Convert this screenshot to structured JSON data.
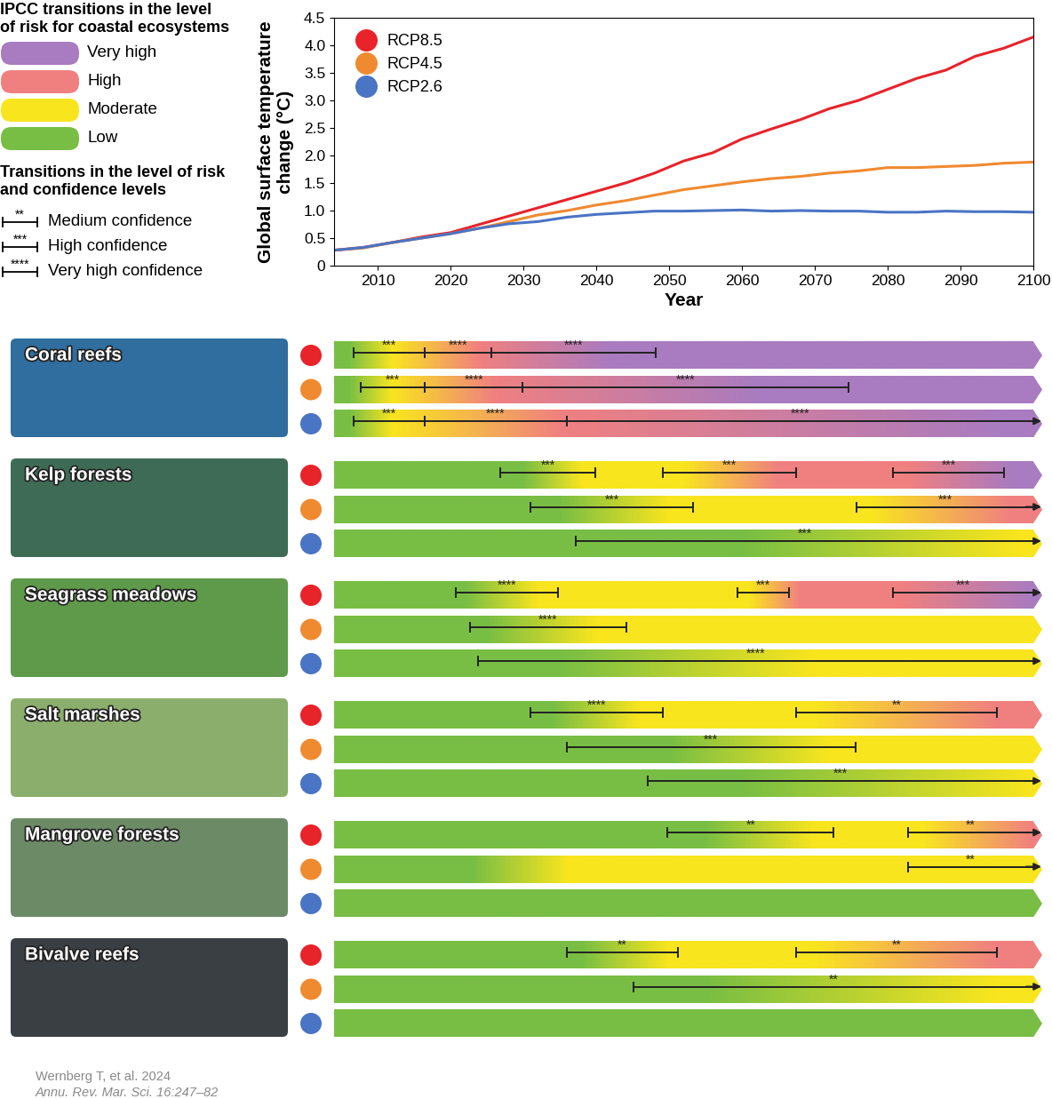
{
  "chart_data": {
    "type": "line",
    "x": [
      2004,
      2008,
      2012,
      2016,
      2020,
      2024,
      2028,
      2032,
      2036,
      2040,
      2044,
      2048,
      2052,
      2056,
      2060,
      2064,
      2068,
      2072,
      2076,
      2080,
      2084,
      2088,
      2092,
      2096,
      2100
    ],
    "series": [
      {
        "name": "RCP8.5",
        "color": "#e8232a",
        "values": [
          0.28,
          0.33,
          0.42,
          0.52,
          0.6,
          0.75,
          0.9,
          1.05,
          1.2,
          1.35,
          1.5,
          1.68,
          1.9,
          2.05,
          2.3,
          2.48,
          2.65,
          2.85,
          3.0,
          3.2,
          3.4,
          3.55,
          3.8,
          3.95,
          4.15
        ]
      },
      {
        "name": "RCP4.5",
        "color": "#f08a30",
        "values": [
          0.28,
          0.32,
          0.42,
          0.5,
          0.58,
          0.68,
          0.8,
          0.92,
          1.0,
          1.1,
          1.18,
          1.28,
          1.38,
          1.45,
          1.52,
          1.58,
          1.62,
          1.68,
          1.72,
          1.78,
          1.78,
          1.8,
          1.82,
          1.86,
          1.88
        ]
      },
      {
        "name": "RCP2.6",
        "color": "#4a74c4",
        "values": [
          0.28,
          0.33,
          0.42,
          0.5,
          0.58,
          0.68,
          0.76,
          0.8,
          0.88,
          0.93,
          0.96,
          0.99,
          0.99,
          1.0,
          1.01,
          0.99,
          1.0,
          0.99,
          0.99,
          0.97,
          0.97,
          0.99,
          0.98,
          0.98,
          0.97
        ]
      }
    ],
    "xlabel": "Year",
    "ylabel": "Global surface temperature\nchange (°C)",
    "xlim": [
      2004,
      2100
    ],
    "ylim": [
      0,
      4.5
    ],
    "xticks": [
      2010,
      2020,
      2030,
      2040,
      2050,
      2060,
      2070,
      2080,
      2090,
      2100
    ],
    "yticks": [
      0,
      0.5,
      {
        "value": 1,
        "label": "1.0"
      },
      1.5,
      {
        "value": 2,
        "label": "2.0"
      },
      2.5,
      {
        "value": 3,
        "label": "3.0"
      },
      3.5,
      {
        "value": 4,
        "label": "4.0"
      },
      4.5
    ],
    "legend": "upper left",
    "grid": false
  },
  "risk_legend": {
    "title": "IPCC transitions in the level\nof risk for coastal ecosystems",
    "levels": [
      {
        "name": "Very high",
        "color": "#a97bc0"
      },
      {
        "name": "High",
        "color": "#f08080"
      },
      {
        "name": "Moderate",
        "color": "#f9e51e"
      },
      {
        "name": "Low",
        "color": "#78be44"
      }
    ]
  },
  "confidence_legend": {
    "title": "Transitions in the level of risk\nand confidence levels",
    "items": [
      {
        "symbol": "**",
        "label": "Medium confidence"
      },
      {
        "symbol": "***",
        "label": "High confidence"
      },
      {
        "symbol": "****",
        "label": "Very high confidence"
      }
    ]
  },
  "risk_panel": {
    "xlim": [
      2004,
      2100
    ],
    "ecosystems": [
      {
        "name": "Coral reefs",
        "rows": [
          {
            "scenario": "RCP8.5",
            "stops": [
              [
                2006,
                "Low"
              ],
              [
                2012,
                "Moderate"
              ],
              [
                2024,
                "High"
              ],
              [
                2042,
                "Very high"
              ]
            ],
            "brackets": [
              {
                "start": 2006.7,
                "end": 2016.5,
                "label": "***"
              },
              {
                "start": 2016.5,
                "end": 2025.6,
                "label": "****"
              },
              {
                "start": 2025.6,
                "end": 2048.2,
                "label": "****"
              }
            ]
          },
          {
            "scenario": "RCP4.5",
            "stops": [
              [
                2006,
                "Low"
              ],
              [
                2012,
                "Moderate"
              ],
              [
                2026,
                "High"
              ],
              [
                2062,
                "Very high"
              ]
            ],
            "brackets": [
              {
                "start": 2007.6,
                "end": 2016.5,
                "label": "***"
              },
              {
                "start": 2016.5,
                "end": 2029.9,
                "label": "****"
              },
              {
                "start": 2029.9,
                "end": 2074.6,
                "label": "****"
              }
            ]
          },
          {
            "scenario": "RCP2.6",
            "stops": [
              [
                2006,
                "Low"
              ],
              [
                2012,
                "Moderate"
              ],
              [
                2035,
                "High"
              ],
              [
                2095,
                "Very high"
              ]
            ],
            "brackets": [
              {
                "start": 2006.7,
                "end": 2016.5,
                "label": "***"
              },
              {
                "start": 2016.5,
                "end": 2035.9,
                "label": "****"
              },
              {
                "start": 2035.9,
                "end": 2100,
                "label": "****"
              }
            ]
          }
        ]
      },
      {
        "name": "Kelp forests",
        "rows": [
          {
            "scenario": "RCP8.5",
            "stops": [
              [
                2030,
                "Low"
              ],
              [
                2038,
                "Moderate"
              ],
              [
                2052,
                "Moderate"
              ],
              [
                2065,
                "High"
              ],
              [
                2083,
                "High"
              ],
              [
                2097,
                "Very high"
              ]
            ],
            "brackets": [
              {
                "start": 2026.8,
                "end": 2039.9,
                "label": "***"
              },
              {
                "start": 2049.1,
                "end": 2067.4,
                "label": "***"
              },
              {
                "start": 2080.7,
                "end": 2096,
                "label": "***"
              }
            ]
          },
          {
            "scenario": "RCP4.5",
            "stops": [
              [
                2035,
                "Low"
              ],
              [
                2050,
                "Moderate"
              ],
              [
                2078,
                "Moderate"
              ],
              [
                2097,
                "High"
              ]
            ],
            "brackets": [
              {
                "start": 2031,
                "end": 2053.3,
                "label": "***"
              },
              {
                "start": 2075.7,
                "end": 2100,
                "label": "***"
              }
            ]
          },
          {
            "scenario": "RCP2.6",
            "stops": [
              [
                2060,
                "Low"
              ],
              [
                2098,
                "Moderate"
              ]
            ],
            "brackets": [
              {
                "start": 2037.2,
                "end": 2100,
                "label": "***"
              }
            ]
          }
        ]
      },
      {
        "name": "Seagrass meadows",
        "rows": [
          {
            "scenario": "RCP8.5",
            "stops": [
              [
                2022,
                "Low"
              ],
              [
                2032,
                "Moderate"
              ],
              [
                2061,
                "Moderate"
              ],
              [
                2068,
                "High"
              ],
              [
                2082,
                "High"
              ],
              [
                2100,
                "Very high"
              ]
            ],
            "brackets": [
              {
                "start": 2020.7,
                "end": 2034.8,
                "label": "****"
              },
              {
                "start": 2059.4,
                "end": 2066.5,
                "label": "***"
              },
              {
                "start": 2080.7,
                "end": 2100,
                "label": "***"
              }
            ]
          },
          {
            "scenario": "RCP4.5",
            "stops": [
              [
                2025,
                "Low"
              ],
              [
                2040,
                "Moderate"
              ]
            ],
            "brackets": [
              {
                "start": 2022.7,
                "end": 2044.1,
                "label": "****"
              }
            ]
          },
          {
            "scenario": "RCP2.6",
            "stops": [
              [
                2035,
                "Low"
              ],
              [
                2070,
                "Moderate"
              ]
            ],
            "brackets": [
              {
                "start": 2023.8,
                "end": 2100,
                "label": "****"
              }
            ]
          }
        ]
      },
      {
        "name": "Salt marshes",
        "rows": [
          {
            "scenario": "RCP8.5",
            "stops": [
              [
                2034,
                "Low"
              ],
              [
                2046,
                "Moderate"
              ],
              [
                2070,
                "Moderate"
              ],
              [
                2095,
                "High"
              ]
            ],
            "brackets": [
              {
                "start": 2031,
                "end": 2049.1,
                "label": "****"
              },
              {
                "start": 2067.4,
                "end": 2095,
                "label": "**"
              }
            ]
          },
          {
            "scenario": "RCP4.5",
            "stops": [
              [
                2050,
                "Low"
              ],
              [
                2072,
                "Moderate"
              ]
            ],
            "brackets": [
              {
                "start": 2035.9,
                "end": 2075.6,
                "label": "***"
              }
            ]
          },
          {
            "scenario": "RCP2.6",
            "stops": [
              [
                2060,
                "Low"
              ],
              [
                2100,
                "Moderate"
              ]
            ],
            "brackets": [
              {
                "start": 2047,
                "end": 2100,
                "label": "***"
              }
            ]
          }
        ]
      },
      {
        "name": "Mangrove forests",
        "rows": [
          {
            "scenario": "RCP8.5",
            "stops": [
              [
                2055,
                "Low"
              ],
              [
                2070,
                "Moderate"
              ],
              [
                2085,
                "Moderate"
              ],
              [
                2100,
                "High"
              ]
            ],
            "brackets": [
              {
                "start": 2049.8,
                "end": 2072.6,
                "label": "**"
              },
              {
                "start": 2082.8,
                "end": 2100,
                "label": "**"
              }
            ]
          },
          {
            "scenario": "RCP4.5",
            "stops": [
              [
                2023,
                "Low"
              ],
              [
                2036,
                "Moderate"
              ]
            ],
            "brackets": [
              {
                "start": 2082.8,
                "end": 2100,
                "label": "**"
              }
            ]
          },
          {
            "scenario": "RCP2.6",
            "stops": [
              [
                2004,
                "Low"
              ]
            ],
            "brackets": []
          }
        ]
      },
      {
        "name": "Bivalve reefs",
        "rows": [
          {
            "scenario": "RCP8.5",
            "stops": [
              [
                2038,
                "Low"
              ],
              [
                2050,
                "Moderate"
              ],
              [
                2070,
                "Moderate"
              ],
              [
                2095,
                "High"
              ]
            ],
            "brackets": [
              {
                "start": 2035.9,
                "end": 2051.2,
                "label": "**"
              },
              {
                "start": 2067.4,
                "end": 2095,
                "label": "**"
              }
            ]
          },
          {
            "scenario": "RCP4.5",
            "stops": [
              [
                2055,
                "Low"
              ],
              [
                2095,
                "Moderate"
              ]
            ],
            "brackets": [
              {
                "start": 2045.1,
                "end": 2100,
                "label": "**"
              }
            ]
          },
          {
            "scenario": "RCP2.6",
            "stops": [
              [
                2004,
                "Low"
              ]
            ],
            "brackets": []
          }
        ]
      }
    ]
  },
  "source": [
    "Wernberg T, et al. 2024",
    "Annu. Rev. Mar. Sci. 16:247–82"
  ]
}
